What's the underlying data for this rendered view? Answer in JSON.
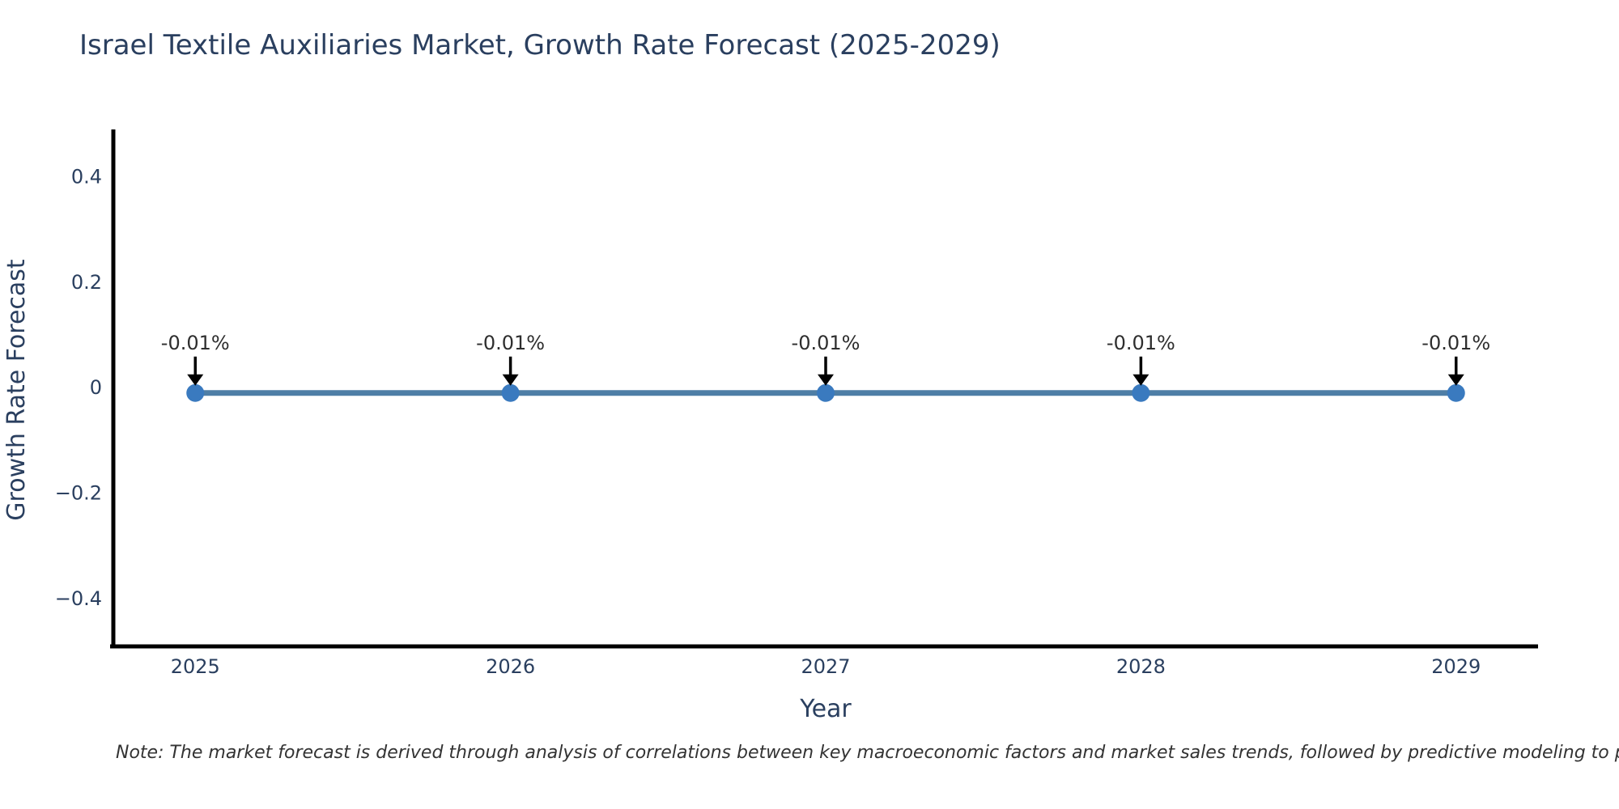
{
  "title": "Israel Textile Auxiliaries Market, Growth Rate Forecast (2025-2029)",
  "note": "Note: The market forecast is derived through analysis of correlations between key macroeconomic factors and market sales trends, followed by predictive modeling to project future sales.",
  "colors": {
    "background": "#ffffff",
    "axis": "#000000",
    "chart_text": "#2a3f5f",
    "line": "#4e7ea6",
    "marker": "#3a7abf",
    "arrow": "#000000",
    "annotation_text": "#2e2e2e"
  },
  "chart_data": {
    "type": "line",
    "title": "Israel Textile Auxiliaries Market, Growth Rate Forecast (2025-2029)",
    "xlabel": "Year",
    "ylabel": "Growth Rate Forecast",
    "x": [
      2025,
      2026,
      2027,
      2028,
      2029
    ],
    "series": [
      {
        "name": "Growth Rate Forecast",
        "values": [
          -0.01,
          -0.01,
          -0.01,
          -0.01,
          -0.01
        ]
      }
    ],
    "point_labels": [
      "-0.01%",
      "-0.01%",
      "-0.01%",
      "-0.01%",
      "-0.01%"
    ],
    "xticks": [
      2025,
      2026,
      2027,
      2028,
      2029
    ],
    "xtick_labels": [
      "2025",
      "2026",
      "2027",
      "2028",
      "2029"
    ],
    "yticks": [
      0.4,
      0.2,
      0,
      -0.2,
      -0.4
    ],
    "ytick_labels": [
      "0.4",
      "0.2",
      "0",
      "−0.2",
      "−0.4"
    ],
    "xlim": [
      2024.74,
      2029.26
    ],
    "ylim": [
      -0.5,
      0.49
    ],
    "grid": false,
    "legend": "none",
    "marker_style": "circle",
    "annotation_arrows": "down"
  }
}
